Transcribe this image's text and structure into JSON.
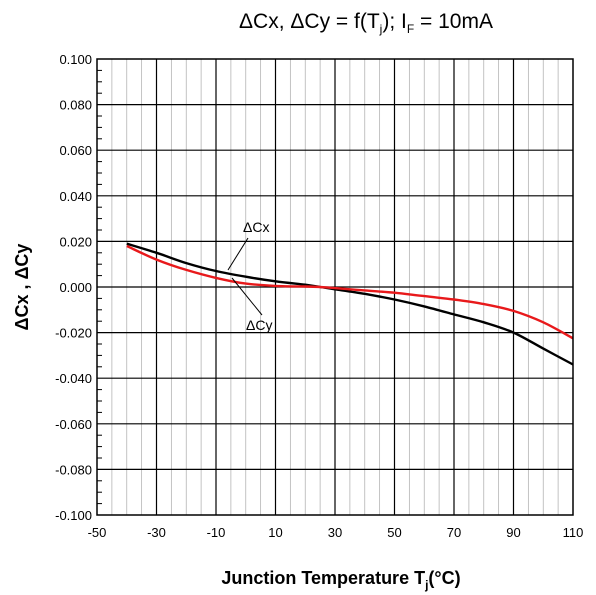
{
  "chart_data": {
    "type": "line",
    "title_parts": {
      "a": "ΔCx, ΔCy = f(T",
      "sub1": "j",
      "b": "); I",
      "sub2": "F",
      "c": " = 10mA"
    },
    "xlabel_parts": {
      "main": "Junction Temperature T",
      "sub": "j",
      "tail": "(°C)"
    },
    "ylabel": "ΔCx , ΔCy",
    "xlim": [
      -50,
      110
    ],
    "ylim": [
      -0.1,
      0.1
    ],
    "x_ticks": [
      "-50",
      "-30",
      "-10",
      "10",
      "30",
      "50",
      "70",
      "90",
      "110"
    ],
    "y_ticks": [
      "0.100",
      "0.080",
      "0.060",
      "0.040",
      "0.020",
      "0.000",
      "-0.020",
      "-0.040",
      "-0.060",
      "-0.080",
      "-0.100"
    ],
    "grid": true,
    "series": [
      {
        "name": "ΔCx",
        "color": "#000000",
        "x": [
          -40,
          -30,
          -20,
          -10,
          0,
          10,
          20,
          25,
          30,
          40,
          50,
          60,
          70,
          80,
          90,
          100,
          110
        ],
        "y": [
          0.019,
          0.015,
          0.0105,
          0.007,
          0.0045,
          0.0025,
          0.001,
          0.0,
          -0.001,
          -0.003,
          -0.0055,
          -0.0085,
          -0.012,
          -0.0155,
          -0.02,
          -0.027,
          -0.034
        ]
      },
      {
        "name": "ΔCy",
        "color": "#e8191b",
        "x": [
          -40,
          -30,
          -20,
          -10,
          0,
          10,
          20,
          25,
          30,
          40,
          50,
          60,
          70,
          80,
          90,
          100,
          110
        ],
        "y": [
          0.018,
          0.012,
          0.0075,
          0.004,
          0.0015,
          0.0005,
          0.0002,
          0.0,
          -0.0005,
          -0.0015,
          -0.0025,
          -0.004,
          -0.0055,
          -0.0075,
          -0.0105,
          -0.0155,
          -0.0225
        ]
      }
    ]
  }
}
